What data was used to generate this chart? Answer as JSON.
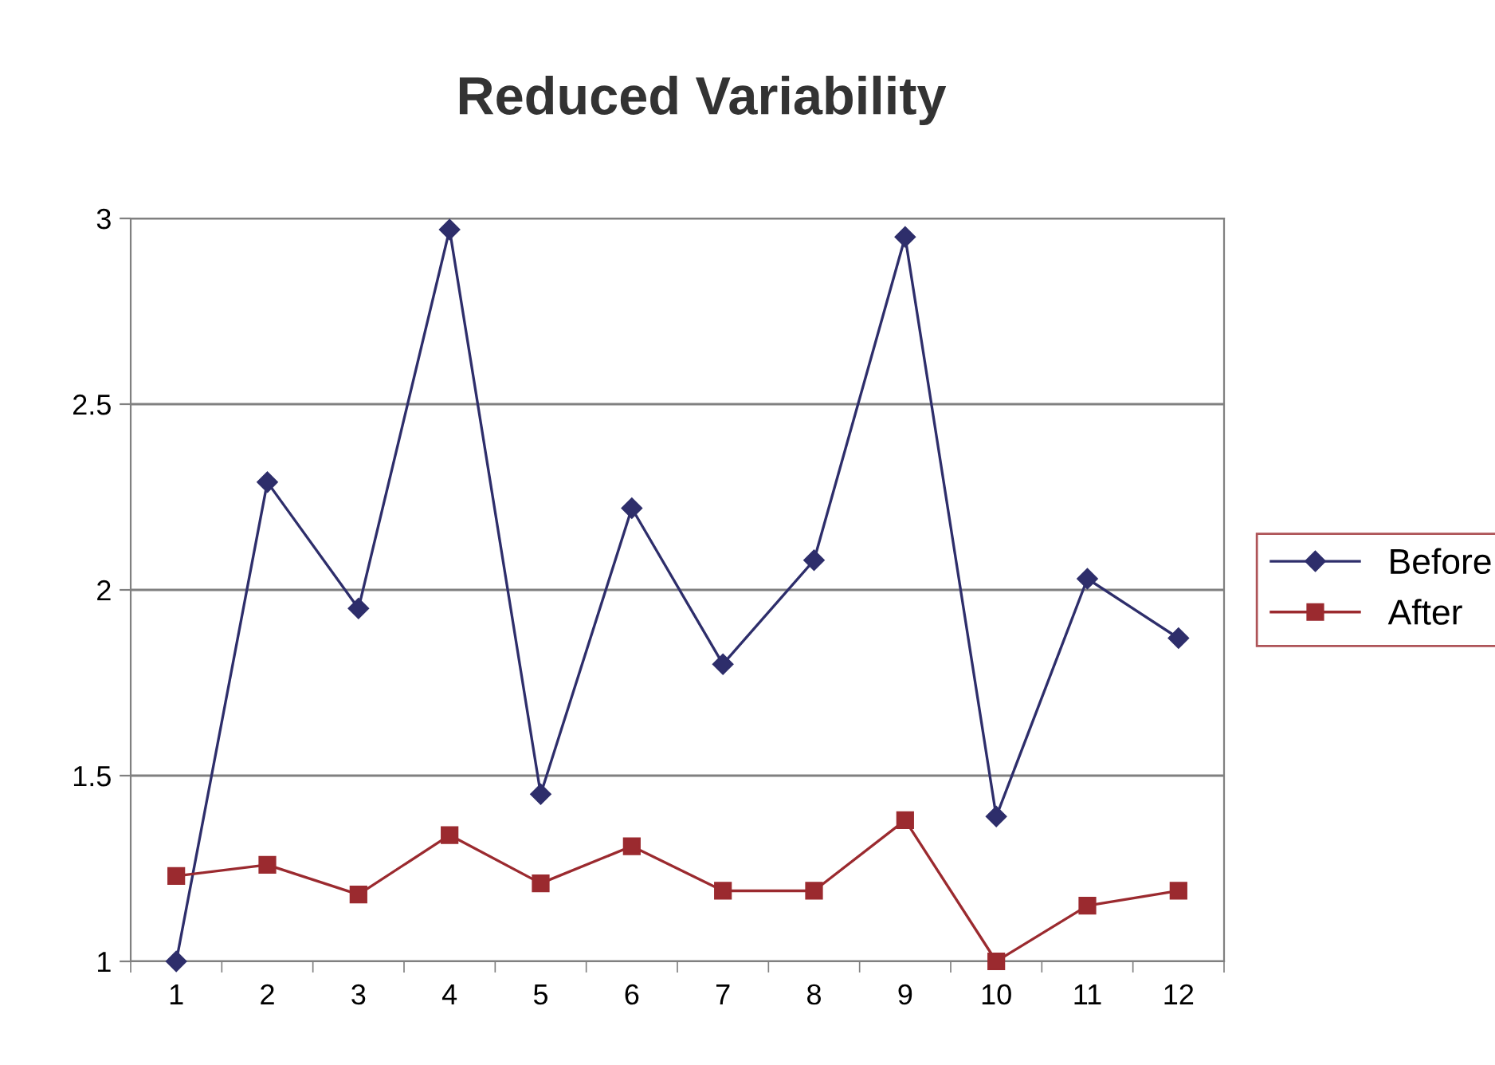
{
  "chart_data": {
    "type": "line",
    "title": "Reduced Variability",
    "categories": [
      "1",
      "2",
      "3",
      "4",
      "5",
      "6",
      "7",
      "8",
      "9",
      "10",
      "11",
      "12"
    ],
    "series": [
      {
        "name": "Before",
        "color": "#2e2e6b",
        "marker": "diamond",
        "values": [
          1.0,
          2.29,
          1.95,
          2.97,
          1.45,
          2.22,
          1.8,
          2.08,
          2.95,
          1.39,
          2.03,
          1.87
        ]
      },
      {
        "name": "After",
        "color": "#9b2a2f",
        "marker": "square",
        "values": [
          1.23,
          1.26,
          1.18,
          1.34,
          1.21,
          1.31,
          1.19,
          1.19,
          1.38,
          1.0,
          1.15,
          1.19
        ]
      }
    ],
    "ylim": [
      1,
      3
    ],
    "yticks": [
      1,
      1.5,
      2,
      2.5,
      3
    ],
    "grid": "y",
    "legend": "right"
  }
}
